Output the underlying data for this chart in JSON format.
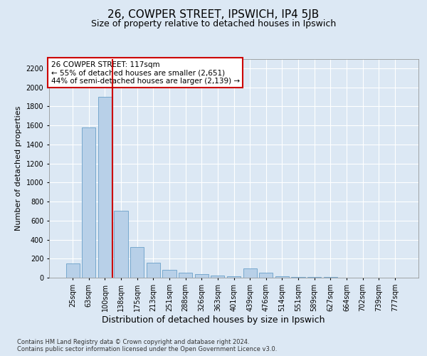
{
  "title1": "26, COWPER STREET, IPSWICH, IP4 5JB",
  "title2": "Size of property relative to detached houses in Ipswich",
  "xlabel": "Distribution of detached houses by size in Ipswich",
  "ylabel": "Number of detached properties",
  "categories": [
    "25sqm",
    "63sqm",
    "100sqm",
    "138sqm",
    "175sqm",
    "213sqm",
    "251sqm",
    "288sqm",
    "326sqm",
    "363sqm",
    "401sqm",
    "439sqm",
    "476sqm",
    "514sqm",
    "551sqm",
    "589sqm",
    "627sqm",
    "664sqm",
    "702sqm",
    "739sqm",
    "777sqm"
  ],
  "values": [
    150,
    1580,
    1900,
    700,
    320,
    160,
    80,
    50,
    35,
    20,
    15,
    100,
    50,
    15,
    8,
    5,
    4,
    3,
    2,
    2,
    2
  ],
  "bar_color": "#b8d0e8",
  "bar_edge_color": "#6aa0c8",
  "vline_color": "#cc0000",
  "vline_position": 2.45,
  "annotation_text": "26 COWPER STREET: 117sqm\n← 55% of detached houses are smaller (2,651)\n44% of semi-detached houses are larger (2,139) →",
  "annotation_box_facecolor": "#ffffff",
  "annotation_box_edgecolor": "#cc0000",
  "ylim": [
    0,
    2300
  ],
  "yticks": [
    0,
    200,
    400,
    600,
    800,
    1000,
    1200,
    1400,
    1600,
    1800,
    2000,
    2200
  ],
  "bg_color": "#dce8f4",
  "plot_bg_color": "#dce8f4",
  "grid_color": "#ffffff",
  "footnote": "Contains HM Land Registry data © Crown copyright and database right 2024.\nContains public sector information licensed under the Open Government Licence v3.0.",
  "title1_fontsize": 11,
  "title2_fontsize": 9,
  "xlabel_fontsize": 9,
  "ylabel_fontsize": 8,
  "tick_fontsize": 7,
  "annotation_fontsize": 7.5,
  "footnote_fontsize": 6
}
